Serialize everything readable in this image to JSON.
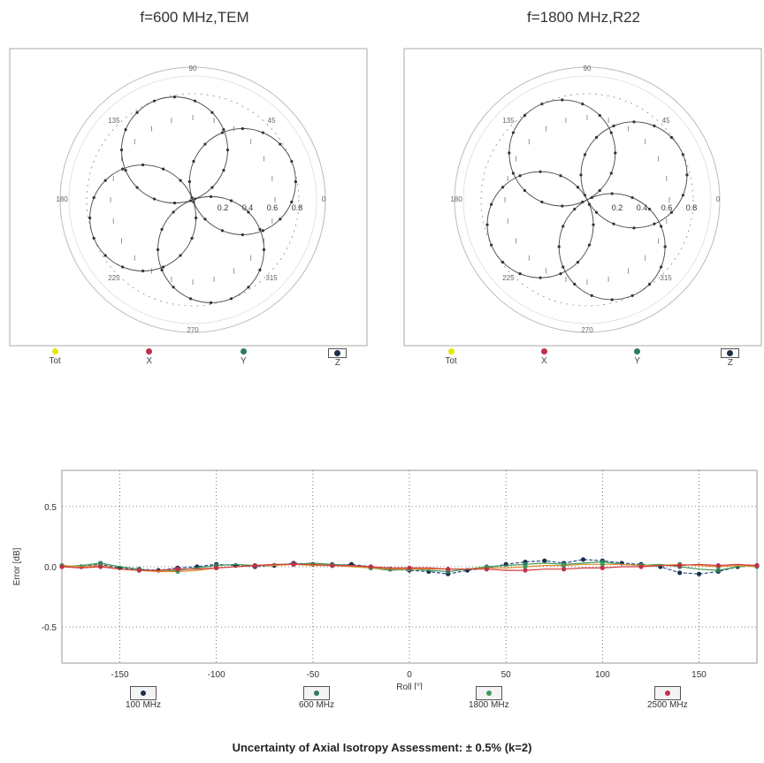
{
  "polar_titles": [
    "f=600 MHz,TEM",
    "f=1800 MHz,R22"
  ],
  "polar_angle_labels": [
    "90",
    "45",
    "0",
    "315",
    "270",
    "225",
    "180",
    "135"
  ],
  "polar_radius_labels": [
    "0.2",
    "0.4",
    "0.6",
    "0.8"
  ],
  "polar_legend": [
    "Tot",
    "X",
    "Y",
    "Z"
  ],
  "colors": {
    "tot": "#e6e600",
    "x": "#c0304a",
    "y": "#2f7a5e",
    "z": "#1b2f4a",
    "grid": "#999999",
    "red": "#d23a3a",
    "orange": "#e08a2a",
    "green": "#3f9a5a",
    "blue": "#2a4f8a"
  },
  "chart_data": [
    {
      "type": "scatter",
      "title": "f=600 MHz,TEM",
      "note": "polar pattern (four-lobed rosette)",
      "series": [
        {
          "name": "Tot"
        },
        {
          "name": "X"
        },
        {
          "name": "Y"
        },
        {
          "name": "Z"
        }
      ]
    },
    {
      "type": "scatter",
      "title": "f=1800 MHz,R22",
      "note": "polar pattern (four-lobed rosette)",
      "series": [
        {
          "name": "Tot"
        },
        {
          "name": "X"
        },
        {
          "name": "Y"
        },
        {
          "name": "Z"
        }
      ]
    },
    {
      "type": "line",
      "xlabel": "Roll [°]",
      "ylabel": "Error [dB]",
      "xlim": [
        -180,
        180
      ],
      "ylim": [
        -0.8,
        0.8
      ],
      "xticks": [
        "-150",
        "-100",
        "-50",
        "0",
        "50",
        "100",
        "150"
      ],
      "yticks": [
        "0.5",
        "0.0",
        "-0.5"
      ],
      "x": [
        -180,
        -170,
        -160,
        -150,
        -140,
        -130,
        -120,
        -110,
        -100,
        -90,
        -80,
        -70,
        -60,
        -50,
        -40,
        -30,
        -20,
        -10,
        0,
        10,
        20,
        30,
        40,
        50,
        60,
        70,
        80,
        90,
        100,
        110,
        120,
        130,
        140,
        150,
        160,
        170,
        180
      ],
      "series": [
        {
          "name": "100 MHz",
          "values": [
            0.01,
            0.0,
            0.02,
            -0.01,
            -0.02,
            -0.03,
            -0.01,
            0.0,
            0.02,
            0.01,
            0.0,
            0.01,
            0.03,
            0.02,
            0.01,
            0.02,
            0.0,
            -0.02,
            -0.03,
            -0.04,
            -0.06,
            -0.03,
            -0.01,
            0.02,
            0.04,
            0.05,
            0.03,
            0.06,
            0.05,
            0.03,
            0.02,
            0.0,
            -0.05,
            -0.06,
            -0.04,
            0.0,
            0.01
          ]
        },
        {
          "name": "600 MHz",
          "values": [
            0.0,
            0.01,
            0.03,
            0.0,
            -0.02,
            -0.04,
            -0.03,
            -0.01,
            0.01,
            0.02,
            0.01,
            0.02,
            0.02,
            0.03,
            0.02,
            0.01,
            -0.01,
            -0.03,
            -0.02,
            -0.03,
            -0.04,
            -0.02,
            0.0,
            0.01,
            0.02,
            0.03,
            0.02,
            0.03,
            0.04,
            0.02,
            0.01,
            0.02,
            0.0,
            -0.02,
            -0.03,
            0.0,
            0.01
          ]
        },
        {
          "name": "1800 MHz",
          "values": [
            0.01,
            0.0,
            0.01,
            -0.02,
            -0.03,
            -0.04,
            -0.04,
            -0.03,
            -0.01,
            0.0,
            0.01,
            0.01,
            0.02,
            0.01,
            0.01,
            0.0,
            -0.01,
            -0.02,
            -0.02,
            -0.02,
            -0.02,
            -0.02,
            -0.01,
            -0.01,
            0.0,
            0.01,
            0.01,
            0.02,
            0.02,
            0.02,
            0.01,
            0.01,
            0.02,
            0.01,
            0.0,
            0.01,
            0.0
          ]
        },
        {
          "name": "2500 MHz",
          "values": [
            0.0,
            -0.01,
            0.0,
            -0.02,
            -0.03,
            -0.03,
            -0.02,
            -0.02,
            -0.01,
            0.0,
            0.01,
            0.02,
            0.02,
            0.02,
            0.01,
            0.01,
            0.0,
            -0.01,
            -0.01,
            -0.01,
            -0.02,
            -0.02,
            -0.02,
            -0.03,
            -0.03,
            -0.02,
            -0.02,
            -0.01,
            -0.01,
            0.0,
            0.0,
            0.01,
            0.01,
            0.02,
            0.01,
            0.02,
            0.01
          ]
        }
      ]
    }
  ],
  "line_legend": [
    "100 MHz",
    "600 MHz",
    "1800 MHz",
    "2500 MHz"
  ],
  "footer": "Uncertainty of Axial Isotropy Assessment: ± 0.5% (k=2)"
}
